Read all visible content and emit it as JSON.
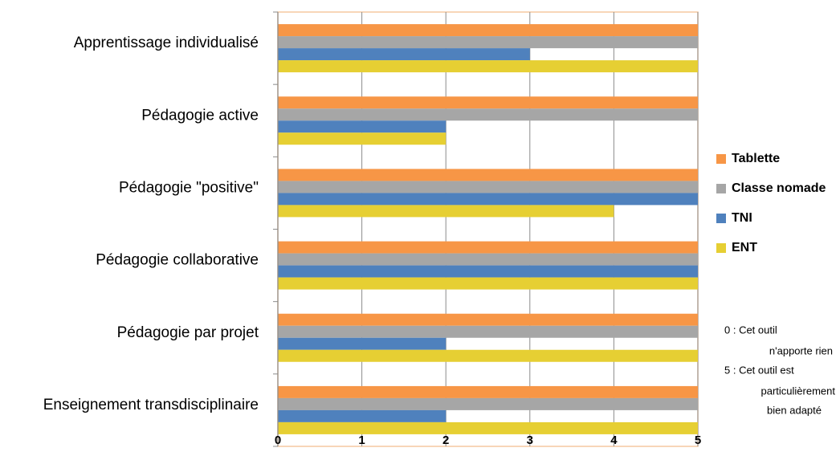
{
  "chart_data": {
    "type": "bar",
    "orientation": "horizontal",
    "categories": [
      "Apprentissage individualisé",
      "Pédagogie active",
      "Pédagogie \"positive\"",
      "Pédagogie collaborative",
      "Pédagogie par projet",
      "Enseignement transdisciplinaire"
    ],
    "series": [
      {
        "name": "Tablette",
        "color": "#f79646",
        "values": [
          5,
          5,
          5,
          5,
          5,
          5
        ]
      },
      {
        "name": "Classe nomade",
        "color": "#a6a6a6",
        "values": [
          5,
          5,
          5,
          5,
          5,
          5
        ]
      },
      {
        "name": "TNI",
        "color": "#4f81bd",
        "values": [
          3,
          2,
          5,
          5,
          2,
          2
        ]
      },
      {
        "name": "ENT",
        "color": "#e6cf33",
        "values": [
          5,
          2,
          4,
          5,
          5,
          5
        ]
      }
    ],
    "xlim": [
      0,
      5
    ],
    "xticks": [
      "0",
      "1",
      "2",
      "3",
      "4",
      "5"
    ],
    "grid": true,
    "legend_position": "right",
    "note": [
      "0 :  Cet outil",
      "n'apporte  rien",
      "5 :  Cet outil est",
      "particulièrement",
      "bien adapté"
    ]
  }
}
